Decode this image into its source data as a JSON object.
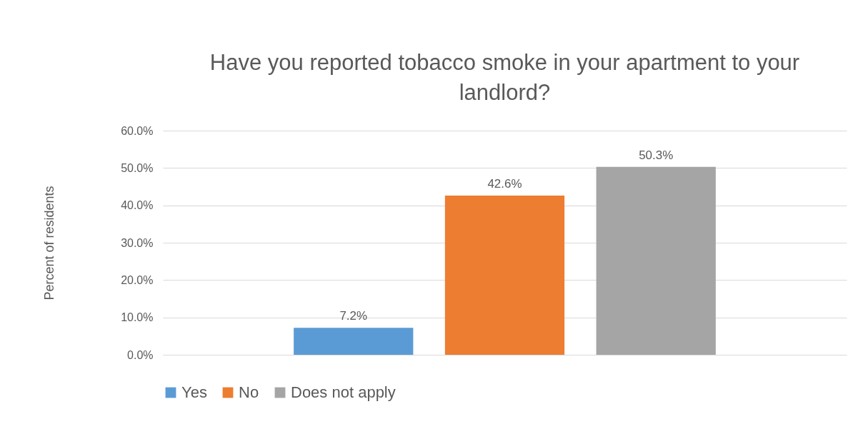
{
  "chart_data": {
    "type": "bar",
    "title": "Have you reported tobacco smoke in your apartment to your landlord?",
    "ylabel": "Percent of residents",
    "categories": [
      null
    ],
    "series": [
      {
        "name": "Yes",
        "color": "#5b9bd5",
        "values": [
          7.2
        ],
        "value_labels": [
          "7.2%"
        ]
      },
      {
        "name": "No",
        "color": "#ed7d31",
        "values": [
          42.6
        ],
        "value_labels": [
          "42.6%"
        ]
      },
      {
        "name": "Does not apply",
        "color": "#a5a5a5",
        "values": [
          50.3
        ],
        "value_labels": [
          "50.3%"
        ]
      }
    ],
    "ylim": [
      0,
      60
    ],
    "yticks": [
      {
        "value": 0,
        "label": "0.0%"
      },
      {
        "value": 10,
        "label": "10.0%"
      },
      {
        "value": 20,
        "label": "20.0%"
      },
      {
        "value": 30,
        "label": "30.0%"
      },
      {
        "value": 40,
        "label": "40.0%"
      },
      {
        "value": 50,
        "label": "50.0%"
      },
      {
        "value": 60,
        "label": "60.0%"
      }
    ],
    "grid": "y",
    "legend": "bottom"
  }
}
